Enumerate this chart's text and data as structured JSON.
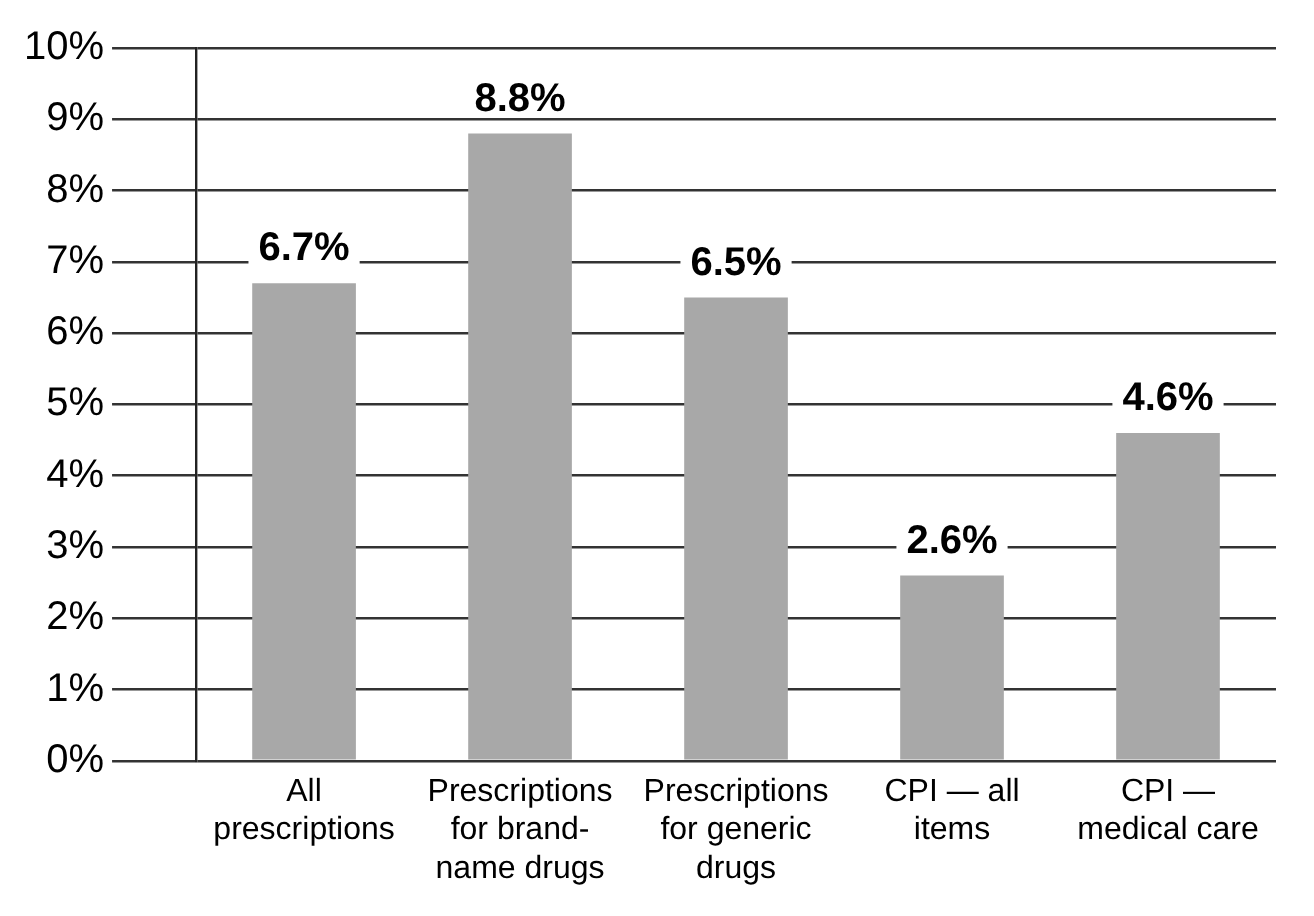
{
  "chart_data": {
    "type": "bar",
    "categories": [
      "All prescriptions",
      "Prescriptions for brand-name drugs",
      "Prescriptions for generic drugs",
      "CPI — all items",
      "CPI — medical care"
    ],
    "values": [
      6.7,
      8.8,
      6.5,
      2.6,
      4.6
    ],
    "color": "#a8a8a8",
    "value_labels": [
      "6.7%",
      "8.8%",
      "6.5%",
      "2.6%",
      "4.6%"
    ],
    "ylim": [
      0,
      10
    ],
    "yticks": [
      {
        "value": 0,
        "label": "0%"
      },
      {
        "value": 1,
        "label": "1%"
      },
      {
        "value": 2,
        "label": "2%"
      },
      {
        "value": 3,
        "label": "3%"
      },
      {
        "value": 4,
        "label": "4%"
      },
      {
        "value": 5,
        "label": "5%"
      },
      {
        "value": 6,
        "label": "6%"
      },
      {
        "value": 7,
        "label": "7%"
      },
      {
        "value": 8,
        "label": "8%"
      },
      {
        "value": 9,
        "label": "9%"
      },
      {
        "value": 10,
        "label": "10%"
      }
    ],
    "grid": "y",
    "legend": false
  }
}
